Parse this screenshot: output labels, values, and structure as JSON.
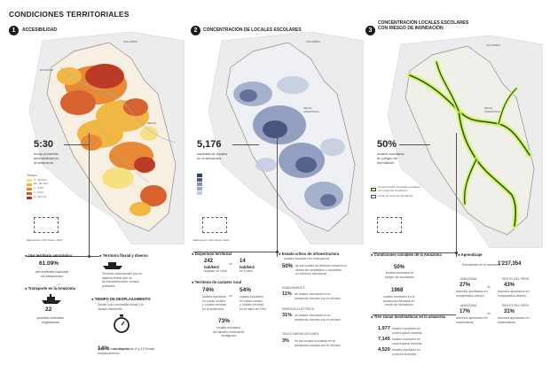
{
  "title": "CONDICIONES TERRITORIALES",
  "panels": [
    {
      "num": "1",
      "title": "ACCESIBILIDAD",
      "stat_value": "5:30",
      "stat_text": "horas promedio\naccesibilidad en\nla amazonía",
      "legend_title": "Tiempo",
      "legend": [
        "0 - 30 mins",
        "30 - 60 mins",
        "1 - 3 hrs",
        "3 - 6 hrs",
        "6 - 12+ hrs"
      ],
      "legend_colors": [
        "#f6e07a",
        "#f1b53a",
        "#e8842c",
        "#d65a26",
        "#b8321e"
      ],
      "source": "Elaboración: Plan Selva, 2021",
      "items": {
        "theme1": "Uso territorio amazónico",
        "theme1_value": "61.09%",
        "theme1_text": "del territorio nacional\nes amazónico",
        "theme2": "Transporte en la Amazonía",
        "theme2_value": "22",
        "theme2_text": "puertos formales\nregistrados",
        "theme3": "Territorio fluvial y diverso",
        "theme3_text": "Territorio estructurado por un\nsistema fluvial que no\nse encuentra entre centros\npoblados.",
        "theme4": "TIEMPO DE DESPLAZAMIENTO",
        "theme4_text": "Donde una comunidad fluvial y la\nciudad intermedia",
        "theme4_stat": "14%",
        "theme4_stat_text": "se desplazan 4 y 12 horas",
        "theme4_sub": "llegando hasta días de\ndesplazamiento"
      }
    },
    {
      "num": "2",
      "title": "CONCENTRACIÓN DE LOCALES ESCOLARES",
      "stat_value": "5,176",
      "stat_text": "cantidad de locales\nen la amazonía",
      "source": "Elaboración: Plan Selva, 2021",
      "items": {
        "dispersion_title": "Dispersión territorial",
        "disp_a_value": "242",
        "disp_a_unit": "hab/km2",
        "disp_a_text": "espacio en Lima",
        "disp_b_value": "14",
        "disp_b_unit": "hab/km2",
        "disp_b_text": "en Loreto",
        "rural_title": "Territorio de carácter rural",
        "rural_a_value": "74%",
        "rural_a_text": "locales escolares\nen zonas rurales\ny rurales remotas\nen la amazonía",
        "rural_b_value": "54%",
        "rural_b_text": "locales escolares\nen zonas rurales\ny rurales remotas\nen el resto del Perú",
        "rural_c_value": "73%",
        "rural_c_text": "locales escolares\ndel tamaño unidocente\n/multigrado",
        "infra_title": "Estado crítico de infraestructura",
        "infra_text": "locales escolares en emergencia",
        "infra_a_value": "50%",
        "infra_a_text": "de los locales en territorio amazónico\ndeben ser sustituidos o necesitan\nun refuerzo estructural",
        "san_title": "SANEAMIENTO",
        "san_value": "11%",
        "san_text": "de locales escolares en la\namazonía cuentan con el servicio",
        "ene_title": "ENERGÍA ELÉCTRICA",
        "ene_value": "31%",
        "ene_text": "de locales escolares en la\namazonía cuentan con el servicio",
        "tel_title": "TELECOMUNICACIONES",
        "tel_value": "3%",
        "tel_text": "de los locales escolares en la\namazonía cuentan con el servicio"
      }
    },
    {
      "num": "3",
      "title": "CONCENTRACIÓN LOCALES ESCOLARES\nCON RIESGO DE INUNDACIÓN",
      "stat_value": "50%",
      "stat_text": "locales escolares\nen peligro de\ninundación",
      "legend": [
        "Concentración de locales escolares\ncon riesgo de inundación",
        "Límite de Zona de Inundación"
      ],
      "items": {
        "cond_title": "Condiciones variables de la Amazonía",
        "cond_value": "50%",
        "cond_text": "locales escolares en\npeligro de inundación",
        "cond_b_value": "1968",
        "cond_b_text": "locales escolares en la\namazonía ubicados en\nzonas de inundación",
        "learn_title": "Aprendizaje",
        "learn_text": "Estudiantes en la amazonía",
        "learn_value": "1'237,354",
        "ama_a_label": "AMAZONÍA",
        "ama_a_value": "27%",
        "ama_a_text": "alumnos aprobados en\ncomprensión lectora",
        "rest_a_label": "RESTO DEL PERÚ",
        "rest_a_value": "43%",
        "rest_a_text": "alumnos aprobados en\ncomprensión lectora",
        "ama_b_label": "AMAZONÍA",
        "ama_b_value": "17%",
        "ama_b_text": "alumnos aprobados en\nmatemáticas",
        "rest_b_label": "RESTO DEL PERÚ",
        "rest_b_value": "31%",
        "rest_b_text": "alumnos aprobados en\nmatemáticas",
        "zones_title": "Tres zonas bioclimáticas en la amazonía",
        "zone_a_value": "1,977",
        "zone_a_text": "locales escolares en\nzona tropical húmeda",
        "zone_b_value": "7,145",
        "zone_b_text": "locales escolares en\nzona tropical húmeda",
        "zone_c_value": "4,520",
        "zone_c_text": "locales escolares en\nzona de Montaña"
      }
    }
  ],
  "map_labels": {
    "colombia": "COLOMBIA",
    "ecuador": "ECUADOR",
    "brasil": "BRASIL",
    "amazonia": "SELVA\nAMAZÓNICA"
  }
}
